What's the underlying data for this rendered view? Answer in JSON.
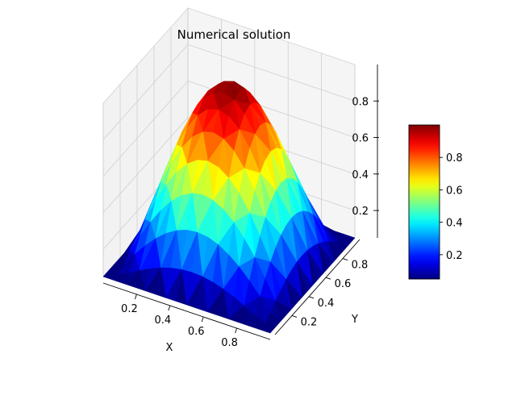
{
  "chart_data": {
    "type": "surface3d",
    "title": "Numerical solution",
    "xlabel": "X",
    "ylabel": "Y",
    "zlabel": "",
    "x_ticks": [
      "0.2",
      "0.4",
      "0.6",
      "0.8"
    ],
    "y_ticks": [
      "0.2",
      "0.4",
      "0.6",
      "0.8"
    ],
    "z_ticks": [
      "0.2",
      "0.4",
      "0.6",
      "0.8"
    ],
    "colorbar_ticks": [
      "0.2",
      "0.4",
      "0.6",
      "0.8"
    ],
    "xlim": [
      0.0,
      1.0
    ],
    "ylim": [
      0.0,
      1.0
    ],
    "zlim": [
      0.05,
      1.0
    ],
    "colormap": "jet",
    "function": "sin(pi*x)*sin(pi*y)",
    "grid_points": 17,
    "grid": true
  }
}
